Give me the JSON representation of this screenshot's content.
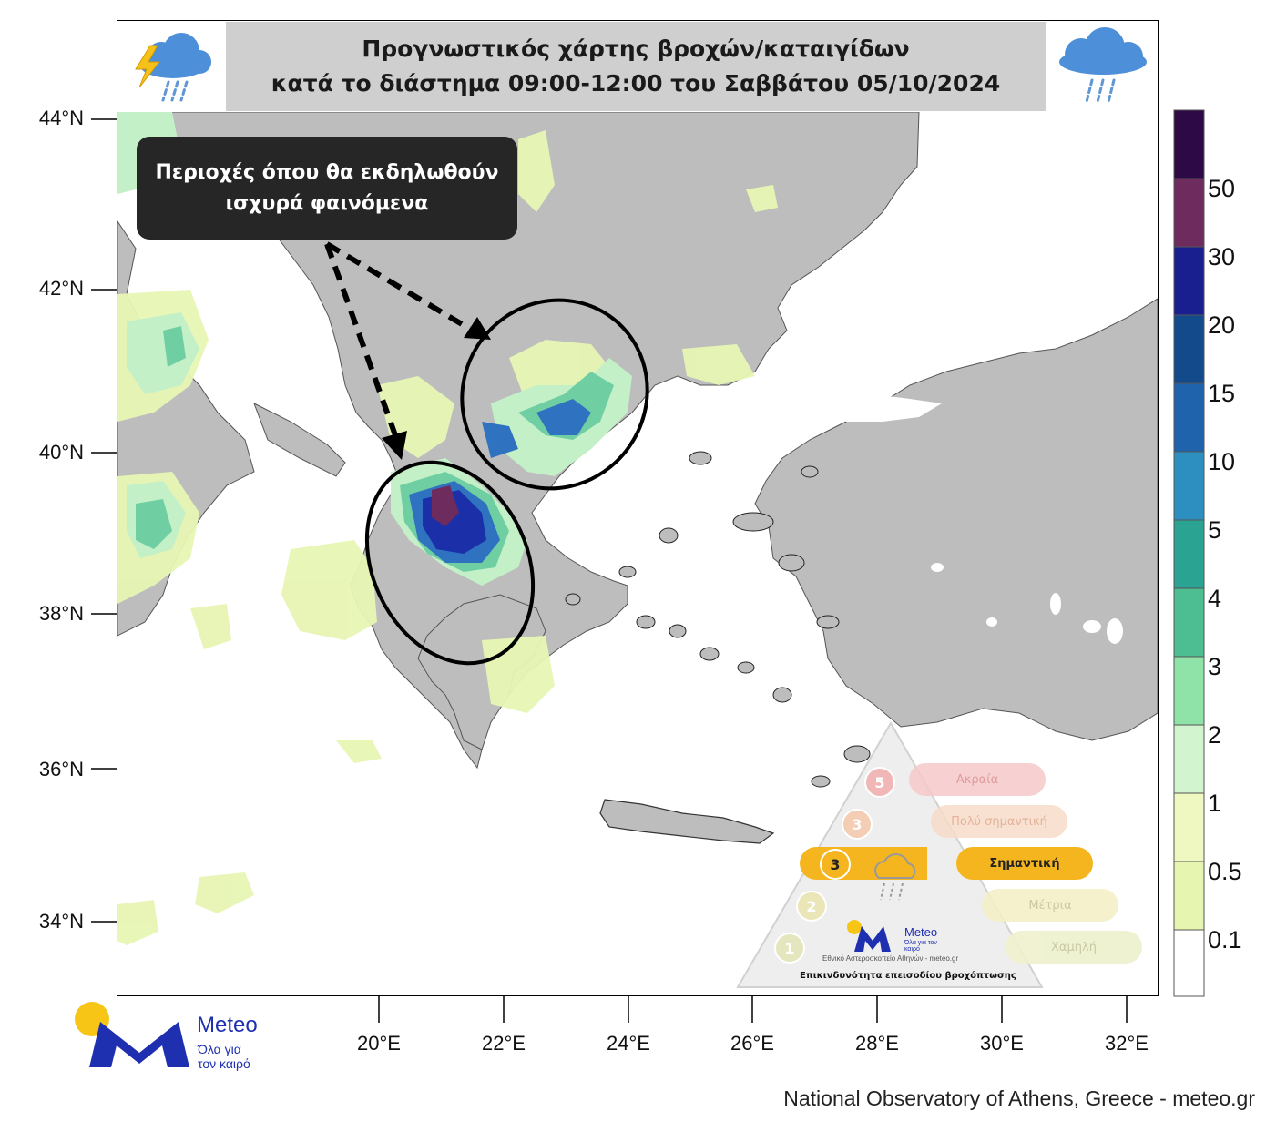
{
  "title": {
    "line1": "Προγνωστικός χάρτης βροχών/καταιγίδων",
    "line2": "κατά το διάστημα 09:00-12:00 του Σαββάτου 05/10/2024"
  },
  "callout": {
    "line1": "Περιοχές όπου θα εκδηλωθούν",
    "line2": "ισχυρά φαινόμενα"
  },
  "axes": {
    "latitude_labels": [
      "44°N",
      "42°N",
      "40°N",
      "38°N",
      "36°N",
      "34°N"
    ],
    "longitude_labels": [
      "20°E",
      "22°E",
      "24°E",
      "26°E",
      "28°E",
      "30°E",
      "32°E"
    ]
  },
  "colorbar": {
    "labels": [
      "50",
      "30",
      "20",
      "15",
      "10",
      "5",
      "4",
      "3",
      "2",
      "1",
      "0.5",
      "0.1"
    ],
    "colors": [
      "#2d0a45",
      "#6e2b5e",
      "#1a1f8f",
      "#134a8c",
      "#1f63ad",
      "#2c8fbf",
      "#2aa392",
      "#4dbd92",
      "#8fe3a8",
      "#d2f5cf",
      "#eef8c0",
      "#e6f5b0",
      "#ffffff"
    ]
  },
  "risk_scale": {
    "title": "Επικινδυνότητα επεισοδίου βροχόπτωσης",
    "levels": [
      {
        "number": "5",
        "label": "Ακραία",
        "color": "#f6c9c9"
      },
      {
        "number": "4",
        "label": "Πολύ σημαντική",
        "color": "#f8dcc9"
      },
      {
        "number": "3",
        "label": "Σημαντική",
        "color": "#f5b51f"
      },
      {
        "number": "2",
        "label": "Μέτρια",
        "color": "#f5f0c8"
      },
      {
        "number": "1",
        "label": "Χαμηλή",
        "color": "#eef1cc"
      }
    ],
    "active_level": "3",
    "brand": "Meteo",
    "brand_small": "Όλα για τον καιρό",
    "institute_line": "Εθνικό Αστεροσκοπείο Αθηνών - meteo.gr"
  },
  "logo": {
    "brand": "Meteo",
    "tagline_1": "Όλα για",
    "tagline_2": "τον καιρό"
  },
  "credit": "National Observatory of Athens, Greece - meteo.gr",
  "colors": {
    "land": "#bdbdbd",
    "sea": "#ffffff",
    "brand_blue": "#1e2fb0",
    "brand_yellow": "#f7c515"
  }
}
